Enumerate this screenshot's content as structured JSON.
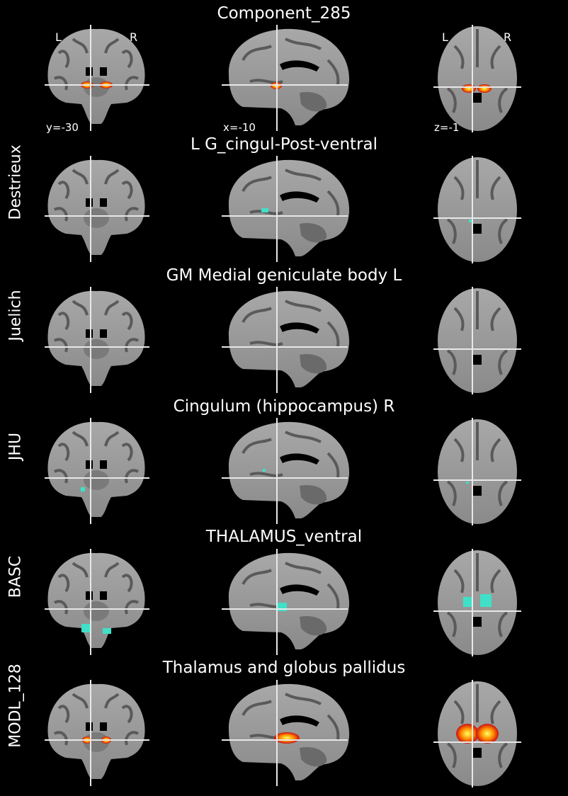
{
  "figure": {
    "title": "Component_285",
    "orientation": {
      "left": "L",
      "right": "R"
    },
    "coords": {
      "coronal": "y=-30",
      "sagittal": "x=-10",
      "axial": "z=-1"
    },
    "colors": {
      "atlas": "#40e0c8",
      "heat_core": "#ffff60",
      "heat_mid": "#ff8c00",
      "heat_edge": "#cc1010"
    },
    "rows": [
      {
        "label": "",
        "region": "Component_285",
        "overlay": "heat"
      },
      {
        "label": "Destrieux",
        "region": "L G_cingul-Post-ventral",
        "overlay": "atlas"
      },
      {
        "label": "Juelich",
        "region": "GM Medial geniculate body L",
        "overlay": "none"
      },
      {
        "label": "JHU",
        "region": "Cingulum (hippocampus) R",
        "overlay": "atlas"
      },
      {
        "label": "BASC",
        "region": "THALAMUS_ventral",
        "overlay": "atlas"
      },
      {
        "label": "MODL_128",
        "region": "Thalamus and globus pallidus",
        "overlay": "heat"
      }
    ]
  }
}
